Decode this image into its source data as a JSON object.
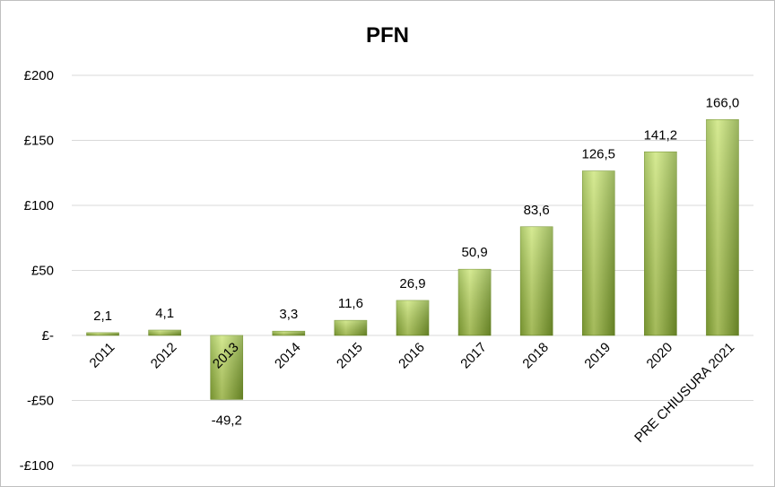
{
  "chart_data": {
    "type": "bar",
    "title": "PFN",
    "categories": [
      "2011",
      "2012",
      "2013",
      "2014",
      "2015",
      "2016",
      "2017",
      "2018",
      "2019",
      "2020",
      "PRE CHIUSURA 2021"
    ],
    "values": [
      2.1,
      4.1,
      -49.2,
      3.3,
      11.6,
      26.9,
      50.9,
      83.6,
      126.5,
      141.2,
      166.0
    ],
    "data_labels": [
      "2,1",
      "4,1",
      "-49,2",
      "3,3",
      "11,6",
      "26,9",
      "50,9",
      "83,6",
      "126,5",
      "141,2",
      "166,0"
    ],
    "y_ticks": [
      200,
      150,
      100,
      50,
      0,
      -50,
      -100
    ],
    "y_tick_labels": [
      "£200",
      "£150",
      "£100",
      "£50",
      "£-",
      "-£50",
      "-£100"
    ],
    "ylim": [
      -100,
      200
    ],
    "grid": true,
    "legend": "none",
    "colors": {
      "bar_light": "#c4e06a",
      "bar_mid": "#9bc23f",
      "bar_dark": "#6f8f28",
      "grid": "#d9d9d9"
    }
  }
}
